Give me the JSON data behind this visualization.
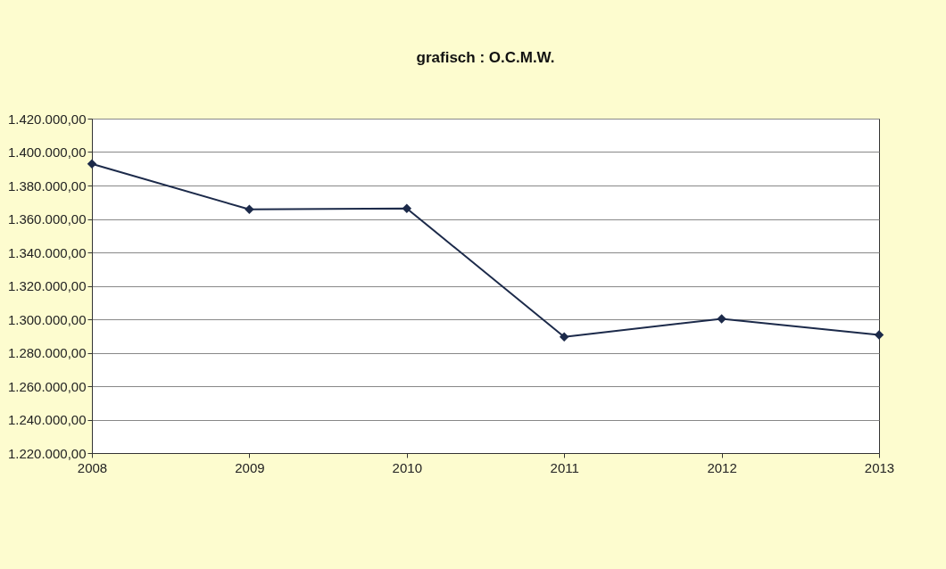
{
  "chart_data": {
    "type": "line",
    "title": "grafisch : O.C.M.W.",
    "categories": [
      "2008",
      "2009",
      "2010",
      "2011",
      "2012",
      "2013"
    ],
    "series": [
      {
        "color": "#1c2a4a",
        "values": [
          1392900,
          1365700,
          1366300,
          1289500,
          1300300,
          1290700
        ]
      }
    ],
    "ylim": [
      1220000,
      1420000
    ],
    "yticks": [
      {
        "value": 1220000,
        "label": "1.220.000,00"
      },
      {
        "value": 1240000,
        "label": "1.240.000,00"
      },
      {
        "value": 1260000,
        "label": "1.260.000,00"
      },
      {
        "value": 1280000,
        "label": "1.280.000,00"
      },
      {
        "value": 1300000,
        "label": "1.300.000,00"
      },
      {
        "value": 1320000,
        "label": "1.320.000,00"
      },
      {
        "value": 1340000,
        "label": "1.340.000,00"
      },
      {
        "value": 1360000,
        "label": "1.360.000,00"
      },
      {
        "value": 1380000,
        "label": "1.380.000,00"
      },
      {
        "value": 1400000,
        "label": "1.400.000,00"
      },
      {
        "value": 1420000,
        "label": "1.420.000,00"
      }
    ],
    "grid": "y",
    "marker": "diamond",
    "line_style": "solid",
    "legend": false
  }
}
